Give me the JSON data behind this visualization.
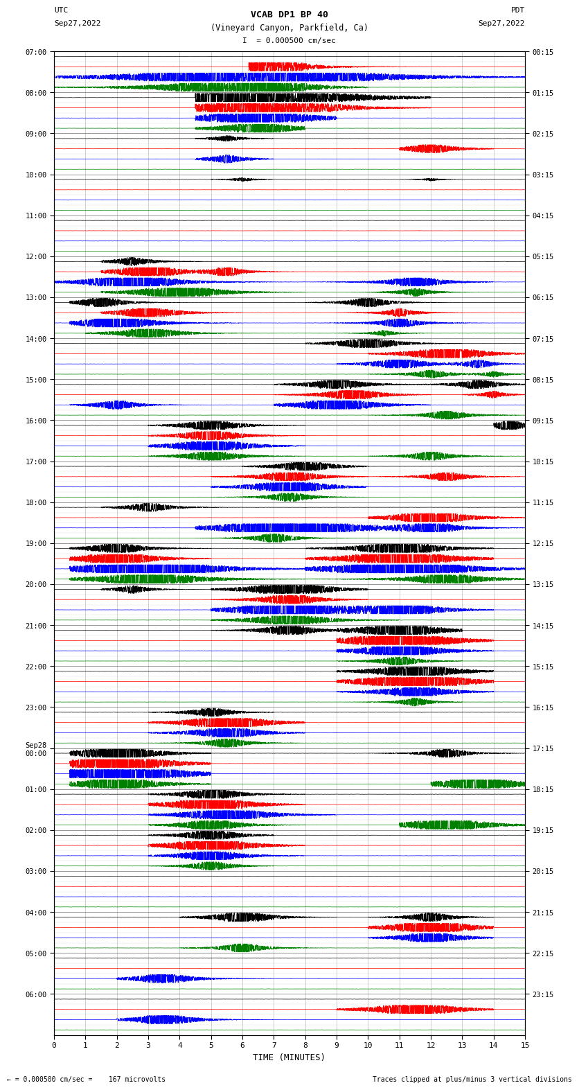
{
  "title_line1": "VCAB DP1 BP 40",
  "title_line2": "(Vineyard Canyon, Parkfield, Ca)",
  "scale_label": "I  = 0.000500 cm/sec",
  "left_label_top": "UTC",
  "left_label_date": "Sep27,2022",
  "right_label_top": "PDT",
  "right_label_date": "Sep27,2022",
  "bottom_label": "TIME (MINUTES)",
  "footer_left": "← = 0.000500 cm/sec =    167 microvolts",
  "footer_right": "Traces clipped at plus/minus 3 vertical divisions",
  "utc_tick_labels": [
    "07:00",
    "08:00",
    "09:00",
    "10:00",
    "11:00",
    "12:00",
    "13:00",
    "14:00",
    "15:00",
    "16:00",
    "17:00",
    "18:00",
    "19:00",
    "20:00",
    "21:00",
    "22:00",
    "23:00",
    "Sep28\n00:00",
    "01:00",
    "02:00",
    "03:00",
    "04:00",
    "05:00",
    "06:00"
  ],
  "pdt_tick_labels": [
    "00:15",
    "01:15",
    "02:15",
    "03:15",
    "04:15",
    "05:15",
    "06:15",
    "07:15",
    "08:15",
    "09:15",
    "10:15",
    "11:15",
    "12:15",
    "13:15",
    "14:15",
    "15:15",
    "16:15",
    "17:15",
    "18:15",
    "19:15",
    "20:15",
    "21:15",
    "22:15",
    "23:15"
  ],
  "colors": [
    "black",
    "red",
    "blue",
    "green"
  ],
  "n_rows": 96,
  "n_traces_per_hour": 4,
  "x_min": 0,
  "x_max": 15,
  "x_ticks": [
    0,
    1,
    2,
    3,
    4,
    5,
    6,
    7,
    8,
    9,
    10,
    11,
    12,
    13,
    14,
    15
  ],
  "fig_width": 8.5,
  "fig_height": 16.13,
  "bg_color": "white",
  "axes_bg": "white",
  "seed": 12345
}
